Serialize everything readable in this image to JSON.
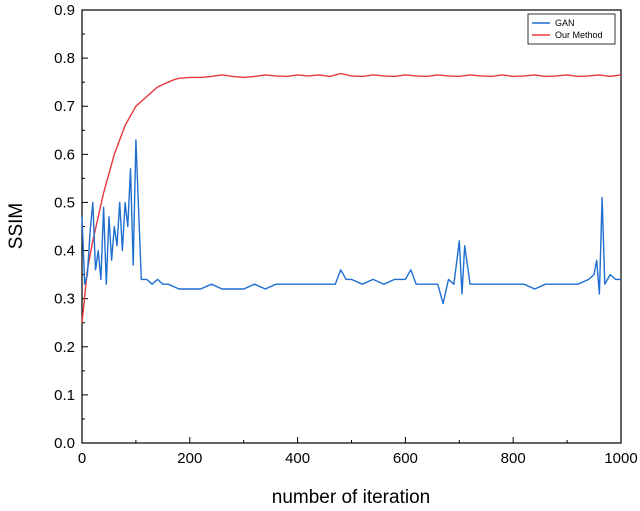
{
  "chart_data": {
    "type": "line",
    "title": "",
    "xlabel": "number of iteration",
    "ylabel": "SSIM",
    "xlim": [
      0,
      1000
    ],
    "ylim": [
      0.0,
      0.9
    ],
    "xticks": [
      0,
      200,
      400,
      600,
      800,
      1000
    ],
    "xtick_labels": [
      "0",
      "200",
      "400",
      "600",
      "800",
      "1000"
    ],
    "yticks": [
      0.0,
      0.1,
      0.2,
      0.3,
      0.4,
      0.5,
      0.6,
      0.7,
      0.8,
      0.9
    ],
    "ytick_labels": [
      "0.0",
      "0.1",
      "0.2",
      "0.3",
      "0.4",
      "0.5",
      "0.6",
      "0.7",
      "0.8",
      "0.9"
    ],
    "grid": false,
    "legend_position": "top-right",
    "series": [
      {
        "name": "GAN",
        "color": "#1f6fd1",
        "x": [
          0,
          5,
          10,
          15,
          20,
          25,
          30,
          35,
          40,
          45,
          50,
          55,
          60,
          65,
          70,
          75,
          80,
          85,
          90,
          95,
          100,
          110,
          120,
          130,
          140,
          150,
          160,
          180,
          200,
          220,
          240,
          260,
          280,
          300,
          320,
          340,
          360,
          380,
          400,
          420,
          440,
          460,
          470,
          480,
          490,
          500,
          520,
          540,
          560,
          580,
          600,
          610,
          620,
          640,
          660,
          670,
          680,
          690,
          700,
          705,
          710,
          720,
          740,
          760,
          780,
          800,
          820,
          840,
          860,
          880,
          900,
          920,
          940,
          950,
          955,
          960,
          965,
          970,
          975,
          980,
          990,
          1000
        ],
        "values": [
          0.47,
          0.33,
          0.35,
          0.44,
          0.5,
          0.36,
          0.4,
          0.34,
          0.49,
          0.33,
          0.47,
          0.38,
          0.45,
          0.41,
          0.5,
          0.4,
          0.5,
          0.45,
          0.57,
          0.37,
          0.63,
          0.34,
          0.34,
          0.33,
          0.34,
          0.33,
          0.33,
          0.32,
          0.32,
          0.32,
          0.33,
          0.32,
          0.32,
          0.32,
          0.33,
          0.32,
          0.33,
          0.33,
          0.33,
          0.33,
          0.33,
          0.33,
          0.33,
          0.36,
          0.34,
          0.34,
          0.33,
          0.34,
          0.33,
          0.34,
          0.34,
          0.36,
          0.33,
          0.33,
          0.33,
          0.29,
          0.34,
          0.33,
          0.42,
          0.31,
          0.41,
          0.33,
          0.33,
          0.33,
          0.33,
          0.33,
          0.33,
          0.32,
          0.33,
          0.33,
          0.33,
          0.33,
          0.34,
          0.35,
          0.38,
          0.31,
          0.51,
          0.33,
          0.34,
          0.35,
          0.34,
          0.34
        ]
      },
      {
        "name": "Our Method",
        "color": "#e8383d",
        "x": [
          0,
          10,
          20,
          30,
          40,
          50,
          60,
          70,
          80,
          90,
          100,
          110,
          120,
          130,
          140,
          150,
          160,
          170,
          180,
          200,
          220,
          240,
          260,
          280,
          300,
          320,
          340,
          360,
          380,
          400,
          420,
          440,
          460,
          480,
          500,
          520,
          540,
          560,
          580,
          600,
          620,
          640,
          660,
          680,
          700,
          720,
          740,
          760,
          780,
          800,
          820,
          840,
          860,
          880,
          900,
          920,
          940,
          960,
          980,
          1000
        ],
        "values": [
          0.25,
          0.36,
          0.42,
          0.47,
          0.52,
          0.56,
          0.6,
          0.63,
          0.66,
          0.68,
          0.7,
          0.71,
          0.72,
          0.73,
          0.74,
          0.745,
          0.75,
          0.755,
          0.758,
          0.76,
          0.76,
          0.762,
          0.765,
          0.762,
          0.76,
          0.762,
          0.765,
          0.763,
          0.762,
          0.765,
          0.763,
          0.765,
          0.762,
          0.768,
          0.763,
          0.762,
          0.765,
          0.763,
          0.762,
          0.765,
          0.763,
          0.762,
          0.765,
          0.763,
          0.762,
          0.765,
          0.763,
          0.762,
          0.765,
          0.762,
          0.763,
          0.765,
          0.762,
          0.763,
          0.765,
          0.762,
          0.763,
          0.765,
          0.762,
          0.765
        ]
      }
    ]
  }
}
